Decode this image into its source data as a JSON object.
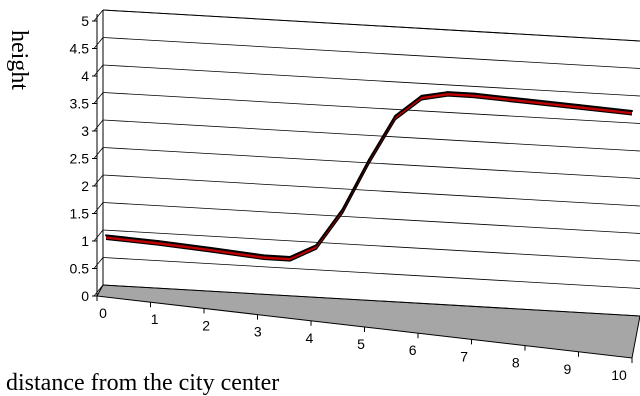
{
  "chart_data": {
    "type": "line",
    "title": "",
    "xlabel": "distance from the city center",
    "ylabel": "height",
    "x": [
      0,
      1,
      2,
      3,
      3.5,
      4,
      4.5,
      5,
      5.5,
      6,
      6.5,
      7,
      8,
      9,
      10
    ],
    "series": [
      {
        "values": [
          1.0,
          0.95,
          0.88,
          0.8,
          0.8,
          1.05,
          1.75,
          2.7,
          3.55,
          3.95,
          4.05,
          4.05,
          4.0,
          3.95,
          3.9
        ]
      }
    ],
    "xlim": [
      0,
      10
    ],
    "ylim": [
      0,
      5
    ],
    "x_ticks": [
      "0",
      "1",
      "2",
      "3",
      "4",
      "5",
      "6",
      "7",
      "8",
      "9",
      "10"
    ],
    "y_ticks": [
      "0",
      "0.5",
      "1",
      "1.5",
      "2",
      "2.5",
      "3",
      "3.5",
      "4",
      "4.5",
      "5"
    ],
    "grid": true,
    "perspective_3d": true,
    "colors": {
      "line": "#000000",
      "ribbon": "#c00000",
      "floor": "#a6a6a6",
      "grid": "#000000"
    }
  }
}
